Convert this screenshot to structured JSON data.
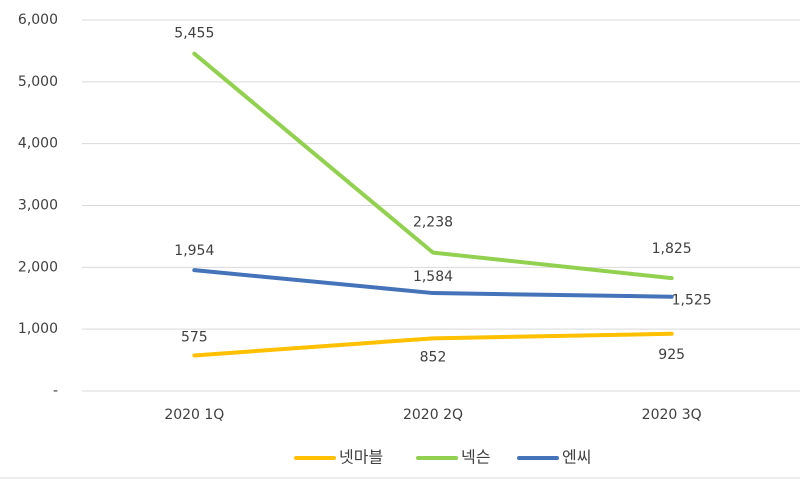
{
  "chart_data": {
    "type": "line",
    "categories": [
      "2020 1Q",
      "2020 2Q",
      "2020 3Q"
    ],
    "series": [
      {
        "name": "넷마블",
        "color": "#ffc000",
        "values": [
          575,
          852,
          925
        ],
        "value_labels": [
          "575",
          "852",
          "925"
        ]
      },
      {
        "name": "넥슨",
        "color": "#92d050",
        "values": [
          5455,
          2238,
          1825
        ],
        "value_labels": [
          "5,455",
          "2,238",
          "1,825"
        ]
      },
      {
        "name": "엔씨",
        "color": "#4473b9",
        "values": [
          1954,
          1584,
          1525
        ],
        "value_labels": [
          "1,954",
          "1,584",
          "1,525"
        ]
      }
    ],
    "ylim": [
      0,
      6000
    ],
    "yticks": [
      {
        "value": 0,
        "label": "-"
      },
      {
        "value": 1000,
        "label": "1,000"
      },
      {
        "value": 2000,
        "label": "2,000"
      },
      {
        "value": 3000,
        "label": "3,000"
      },
      {
        "value": 4000,
        "label": "4,000"
      },
      {
        "value": 5000,
        "label": "5,000"
      },
      {
        "value": 6000,
        "label": "6,000"
      }
    ],
    "grid": true,
    "legend": "bottom"
  }
}
